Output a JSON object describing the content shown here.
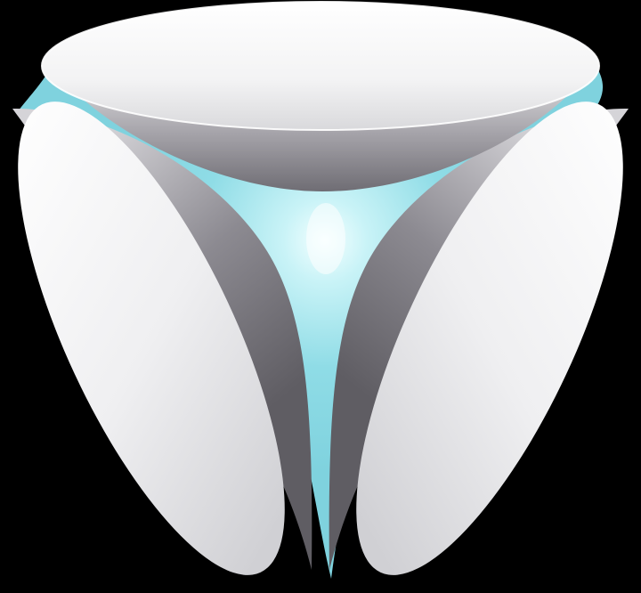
{
  "logo": {
    "icon": "tri-petal-logo-icon",
    "colors": {
      "background": "#000000",
      "petal_light": "#ffffff",
      "petal_mid": "#d9d9dc",
      "petal_dark": "#7d7b82",
      "glow": "#8fdce6",
      "glow_core": "#f4ffff"
    }
  }
}
